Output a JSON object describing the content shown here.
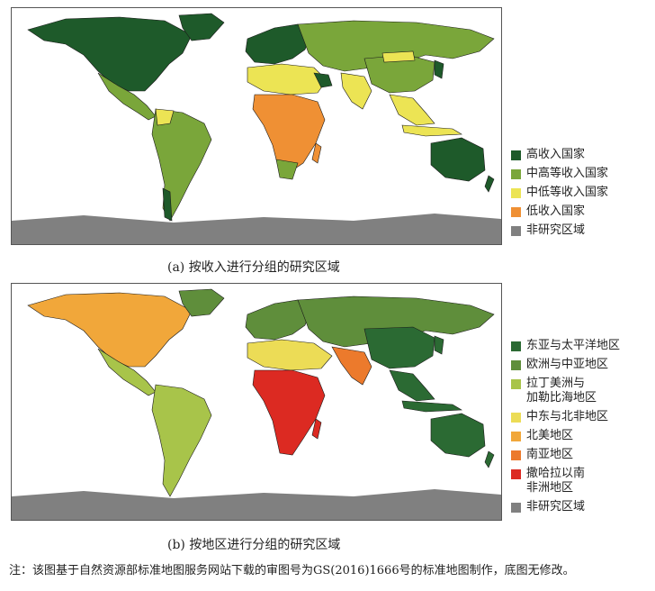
{
  "map_a": {
    "caption": "(a) 按收入进行分组的研究区域",
    "legend": [
      {
        "label": "高收入国家",
        "color": "#1e5a2a"
      },
      {
        "label": "中高等收入国家",
        "color": "#7aa63a"
      },
      {
        "label": "中低等收入国家",
        "color": "#ece454"
      },
      {
        "label": "低收入国家",
        "color": "#ef9034"
      },
      {
        "label": "非研究区域",
        "color": "#808080"
      }
    ]
  },
  "map_b": {
    "caption": "(b) 按地区进行分组的研究区域",
    "legend": [
      {
        "label": "东亚与太平洋地区",
        "color": "#2b6a33"
      },
      {
        "label": "欧洲与中亚地区",
        "color": "#5f8e3b"
      },
      {
        "label": "拉丁美洲与\n加勒比海地区",
        "color": "#a8c44a"
      },
      {
        "label": "中东与北非地区",
        "color": "#ecdc56"
      },
      {
        "label": "北美地区",
        "color": "#f1a73a"
      },
      {
        "label": "南亚地区",
        "color": "#ec7a2c"
      },
      {
        "label": "撒哈拉以南\n非洲地区",
        "color": "#dc2a22"
      },
      {
        "label": "非研究区域",
        "color": "#808080"
      }
    ]
  },
  "note": "注：该图基于自然资源部标准地图服务网站下载的审图号为GS(2016)1666号的标准地图制作，底图无修改。"
}
